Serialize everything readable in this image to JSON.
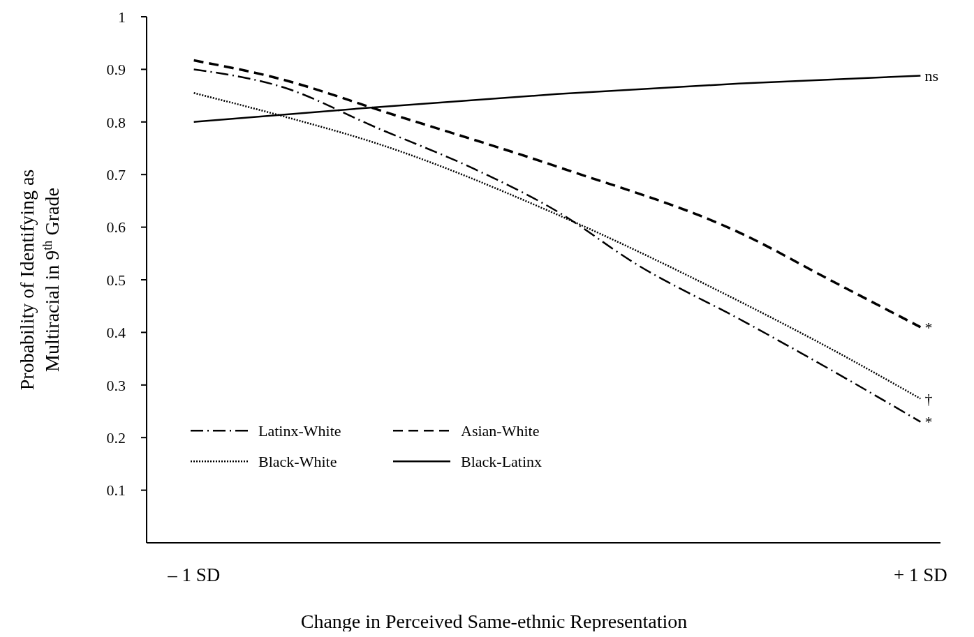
{
  "chart_data": {
    "type": "line",
    "xlabel": "Change in Perceived Same-ethnic Representation",
    "ylabel": "Probability of Identifying as Multiracial in 9$^{th}$ Grade",
    "xlim": [
      -1.13,
      1.055
    ],
    "xticks": [
      {
        "value": -1,
        "label": "– 1 SD"
      },
      {
        "value": 1,
        "label": "+ 1 SD"
      }
    ],
    "ylim": [
      0,
      1
    ],
    "yticks": [
      0.1,
      0.2,
      0.3,
      0.4,
      0.5,
      0.6,
      0.7,
      0.8,
      0.9,
      1
    ],
    "legend": "bottom left",
    "series": [
      {
        "name": "Latinx-White",
        "color": "#000000",
        "line_style": "dashdot",
        "x": [
          -1,
          -0.75,
          -0.5,
          -0.226,
          0,
          0.217,
          0.516,
          0.75,
          1
        ],
        "values": [
          0.9,
          0.865,
          0.79,
          0.71,
          0.63,
          0.53,
          0.42,
          0.33,
          0.23
        ]
      },
      {
        "name": "Asian-White",
        "color": "#000000",
        "line_style": "dashed",
        "x": [
          -1,
          -0.78,
          -0.447,
          0,
          0.516,
          0.75,
          1
        ],
        "values": [
          0.917,
          0.885,
          0.813,
          0.715,
          0.585,
          0.5,
          0.41
        ]
      },
      {
        "name": "Black-White",
        "color": "#000000",
        "line_style": "dotted",
        "x": [
          -1,
          -0.75,
          -0.5,
          0,
          0.516,
          0.75,
          1
        ],
        "values": [
          0.855,
          0.81,
          0.76,
          0.624,
          0.454,
          0.37,
          0.274
        ]
      },
      {
        "name": "Black-Latinx",
        "color": "#000000",
        "line_style": "solid",
        "x": [
          -1,
          -0.5,
          0,
          0.5,
          1
        ],
        "values": [
          0.8,
          0.828,
          0.853,
          0.873,
          0.888
        ]
      }
    ],
    "annotations": [
      "*",
      "*",
      "†",
      "ns"
    ]
  }
}
